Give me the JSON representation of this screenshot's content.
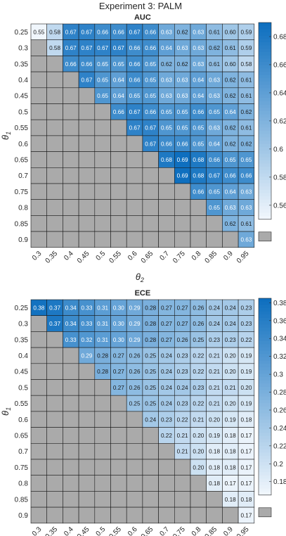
{
  "figure_title": "Experiment 3: PALM",
  "colors": {
    "na_cell": "#aaaaaa",
    "grid_line": "#1a1a1a",
    "cmap_light": "#f0f6fc",
    "cmap_dark": "#0e6fbf"
  },
  "chart_data": [
    {
      "type": "heatmap",
      "title": "AUC",
      "xlabel_symbol": "θ",
      "xlabel_sub": "2",
      "ylabel_symbol": "θ",
      "ylabel_sub": "1",
      "x_categories": [
        "0.3",
        "0.35",
        "0.4",
        "0.45",
        "0.5",
        "0.55",
        "0.6",
        "0.65",
        "0.7",
        "0.75",
        "0.8",
        "0.85",
        "0.9",
        "0.95"
      ],
      "y_categories": [
        "0.25",
        "0.3",
        "0.35",
        "0.4",
        "0.45",
        "0.5",
        "0.55",
        "0.6",
        "0.65",
        "0.7",
        "0.75",
        "0.8",
        "0.85",
        "0.9"
      ],
      "color_range": [
        0.55,
        0.69
      ],
      "colorbar_ticks": [
        "0.56",
        "0.58",
        "0.6",
        "0.62",
        "0.64",
        "0.66",
        "0.68"
      ],
      "values": [
        [
          "0.55",
          "0.58",
          "0.67",
          "0.67",
          "0.66",
          "0.66",
          "0.67",
          "0.66",
          "0.63",
          "0.62",
          "0.63",
          "0.61",
          "0.60",
          "0.59"
        ],
        [
          null,
          "0.58",
          "0.67",
          "0.67",
          "0.67",
          "0.67",
          "0.66",
          "0.66",
          "0.64",
          "0.63",
          "0.63",
          "0.62",
          "0.61",
          "0.59"
        ],
        [
          null,
          null,
          "0.66",
          "0.66",
          "0.65",
          "0.65",
          "0.66",
          "0.65",
          "0.62",
          "0.62",
          "0.63",
          "0.61",
          "0.60",
          "0.58"
        ],
        [
          null,
          null,
          null,
          "0.67",
          "0.65",
          "0.64",
          "0.66",
          "0.65",
          "0.63",
          "0.63",
          "0.64",
          "0.63",
          "0.62",
          "0.61"
        ],
        [
          null,
          null,
          null,
          null,
          "0.65",
          "0.64",
          "0.65",
          "0.65",
          "0.63",
          "0.63",
          "0.64",
          "0.63",
          "0.62",
          "0.61"
        ],
        [
          null,
          null,
          null,
          null,
          null,
          "0.66",
          "0.67",
          "0.66",
          "0.65",
          "0.65",
          "0.66",
          "0.65",
          "0.64",
          "0.62"
        ],
        [
          null,
          null,
          null,
          null,
          null,
          null,
          "0.67",
          "0.67",
          "0.65",
          "0.65",
          "0.65",
          "0.63",
          "0.62",
          "0.61"
        ],
        [
          null,
          null,
          null,
          null,
          null,
          null,
          null,
          "0.67",
          "0.66",
          "0.66",
          "0.65",
          "0.64",
          "0.62",
          "0.62"
        ],
        [
          null,
          null,
          null,
          null,
          null,
          null,
          null,
          null,
          "0.68",
          "0.69",
          "0.68",
          "0.66",
          "0.65",
          "0.65"
        ],
        [
          null,
          null,
          null,
          null,
          null,
          null,
          null,
          null,
          null,
          "0.69",
          "0.68",
          "0.67",
          "0.66",
          "0.66"
        ],
        [
          null,
          null,
          null,
          null,
          null,
          null,
          null,
          null,
          null,
          null,
          "0.66",
          "0.65",
          "0.64",
          "0.63"
        ],
        [
          null,
          null,
          null,
          null,
          null,
          null,
          null,
          null,
          null,
          null,
          null,
          "0.65",
          "0.63",
          "0.63"
        ],
        [
          null,
          null,
          null,
          null,
          null,
          null,
          null,
          null,
          null,
          null,
          null,
          null,
          "0.62",
          "0.61"
        ],
        [
          null,
          null,
          null,
          null,
          null,
          null,
          null,
          null,
          null,
          null,
          null,
          null,
          null,
          "0.63"
        ]
      ]
    },
    {
      "type": "heatmap",
      "title": "ECE",
      "xlabel_symbol": "θ",
      "xlabel_sub": "2",
      "ylabel_symbol": "θ",
      "ylabel_sub": "1",
      "x_categories": [
        "0.3",
        "0.35",
        "0.4",
        "0.45",
        "0.5",
        "0.55",
        "0.6",
        "0.65",
        "0.7",
        "0.75",
        "0.8",
        "0.85",
        "0.9",
        "0.95"
      ],
      "y_categories": [
        "0.25",
        "0.3",
        "0.35",
        "0.4",
        "0.45",
        "0.5",
        "0.55",
        "0.6",
        "0.65",
        "0.7",
        "0.75",
        "0.8",
        "0.85",
        "0.9"
      ],
      "color_range": [
        0.165,
        0.385
      ],
      "colorbar_ticks": [
        "0.18",
        "0.2",
        "0.22",
        "0.24",
        "0.26",
        "0.28",
        "0.3",
        "0.32",
        "0.34",
        "0.36",
        "0.38"
      ],
      "values": [
        [
          "0.38",
          "0.37",
          "0.34",
          "0.33",
          "0.31",
          "0.30",
          "0.29",
          "0.28",
          "0.27",
          "0.27",
          "0.26",
          "0.24",
          "0.24",
          "0.23"
        ],
        [
          null,
          "0.37",
          "0.34",
          "0.33",
          "0.31",
          "0.30",
          "0.29",
          "0.28",
          "0.27",
          "0.27",
          "0.26",
          "0.24",
          "0.24",
          "0.23"
        ],
        [
          null,
          null,
          "0.33",
          "0.32",
          "0.31",
          "0.30",
          "0.29",
          "0.28",
          "0.27",
          "0.26",
          "0.25",
          "0.23",
          "0.23",
          "0.22"
        ],
        [
          null,
          null,
          null,
          "0.29",
          "0.28",
          "0.27",
          "0.26",
          "0.25",
          "0.24",
          "0.23",
          "0.22",
          "0.21",
          "0.20",
          "0.19"
        ],
        [
          null,
          null,
          null,
          null,
          "0.28",
          "0.27",
          "0.26",
          "0.25",
          "0.24",
          "0.23",
          "0.22",
          "0.21",
          "0.20",
          "0.19"
        ],
        [
          null,
          null,
          null,
          null,
          null,
          "0.27",
          "0.26",
          "0.25",
          "0.24",
          "0.24",
          "0.23",
          "0.21",
          "0.21",
          "0.20"
        ],
        [
          null,
          null,
          null,
          null,
          null,
          null,
          "0.25",
          "0.25",
          "0.24",
          "0.23",
          "0.22",
          "0.21",
          "0.20",
          "0.19"
        ],
        [
          null,
          null,
          null,
          null,
          null,
          null,
          null,
          "0.24",
          "0.23",
          "0.22",
          "0.21",
          "0.20",
          "0.19",
          "0.18"
        ],
        [
          null,
          null,
          null,
          null,
          null,
          null,
          null,
          null,
          "0.22",
          "0.21",
          "0.20",
          "0.19",
          "0.18",
          "0.17"
        ],
        [
          null,
          null,
          null,
          null,
          null,
          null,
          null,
          null,
          null,
          "0.21",
          "0.20",
          "0.18",
          "0.18",
          "0.17"
        ],
        [
          null,
          null,
          null,
          null,
          null,
          null,
          null,
          null,
          null,
          null,
          "0.20",
          "0.18",
          "0.18",
          "0.17"
        ],
        [
          null,
          null,
          null,
          null,
          null,
          null,
          null,
          null,
          null,
          null,
          null,
          "0.18",
          "0.17",
          "0.17"
        ],
        [
          null,
          null,
          null,
          null,
          null,
          null,
          null,
          null,
          null,
          null,
          null,
          null,
          "0.18",
          "0.18"
        ],
        [
          null,
          null,
          null,
          null,
          null,
          null,
          null,
          null,
          null,
          null,
          null,
          null,
          null,
          "0.17"
        ]
      ]
    }
  ]
}
